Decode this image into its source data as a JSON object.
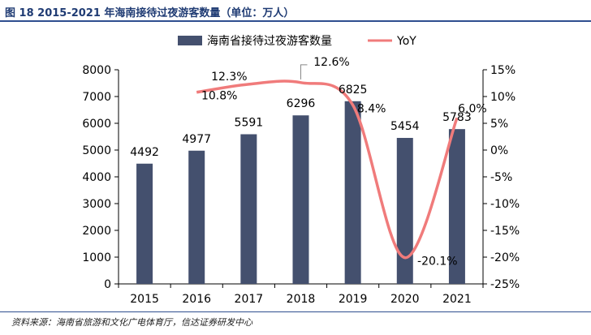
{
  "figure": {
    "title": "图 18  2015-2021 年海南接待过夜游客数量（单位：万人）",
    "source": "资料来源：海南省旅游和文化广电体育厅，信达证券研发中心"
  },
  "colors": {
    "bar": "#44506e",
    "line": "#f07b7b",
    "axis": "#000000"
  },
  "chart_data": {
    "type": "bar",
    "categories": [
      "2015",
      "2016",
      "2017",
      "2018",
      "2019",
      "2020",
      "2021"
    ],
    "series": [
      {
        "name": "海南省接待过夜游客数量",
        "type": "bar",
        "axis": "left",
        "values": [
          4492,
          4977,
          5591,
          6296,
          6825,
          5454,
          5783
        ],
        "labels": [
          "4492",
          "4977",
          "5591",
          "6296",
          "6825",
          "5454",
          "5783"
        ]
      },
      {
        "name": "YoY",
        "type": "line",
        "axis": "right",
        "values": [
          null,
          10.8,
          12.3,
          12.6,
          8.4,
          -20.1,
          6.0
        ],
        "labels": [
          "",
          "10.8%",
          "12.3%",
          "12.6%",
          "8.4%",
          "-20.1%",
          "6.0%"
        ]
      }
    ],
    "y_left": {
      "min": 0,
      "max": 8000,
      "ticks": [
        "0",
        "1000",
        "2000",
        "3000",
        "4000",
        "5000",
        "6000",
        "7000",
        "8000"
      ]
    },
    "y_right": {
      "min": -25,
      "max": 15,
      "ticks": [
        "-25%",
        "-20%",
        "-15%",
        "-10%",
        "-5%",
        "0%",
        "5%",
        "10%",
        "15%"
      ]
    },
    "legend": {
      "position": "top"
    }
  }
}
